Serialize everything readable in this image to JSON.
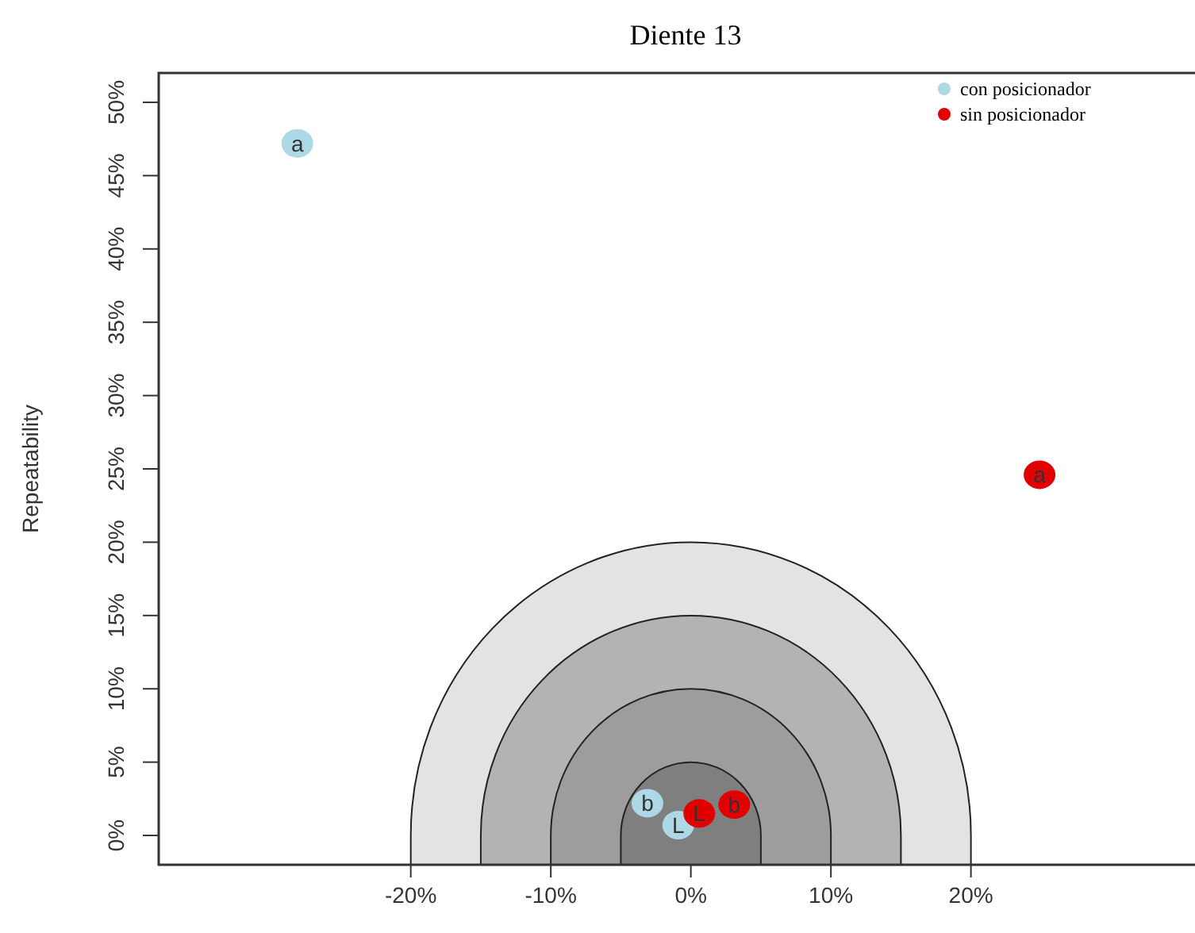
{
  "chart_data": {
    "type": "scatter",
    "title": "Diente 13",
    "ylabel": "Repeatability",
    "xlim": [
      -38,
      36
    ],
    "ylim": [
      -2,
      52
    ],
    "xticks": [
      {
        "value": -20,
        "label": "-20%"
      },
      {
        "value": -10,
        "label": "-10%"
      },
      {
        "value": 0,
        "label": "0%"
      },
      {
        "value": 10,
        "label": "10%"
      },
      {
        "value": 20,
        "label": "20%"
      }
    ],
    "yticks": [
      {
        "value": 0,
        "label": "0%"
      },
      {
        "value": 5,
        "label": "5%"
      },
      {
        "value": 10,
        "label": "10%"
      },
      {
        "value": 15,
        "label": "15%"
      },
      {
        "value": 20,
        "label": "20%"
      },
      {
        "value": 25,
        "label": "25%"
      },
      {
        "value": 30,
        "label": "30%"
      },
      {
        "value": 35,
        "label": "35%"
      },
      {
        "value": 40,
        "label": "40%"
      },
      {
        "value": 45,
        "label": "45%"
      },
      {
        "value": 50,
        "label": "50%"
      }
    ],
    "series": [
      {
        "name": "con posicionador",
        "color": "#add8e6",
        "x": [
          -28.1,
          -3.1,
          -0.9
        ],
        "values": [
          47.2,
          2.2,
          0.7
        ]
      },
      {
        "name": "sin posicionador",
        "color": "#e00000",
        "x": [
          24.9,
          3.1,
          0.6
        ],
        "values": [
          24.6,
          2.1,
          1.5
        ]
      }
    ],
    "annotations": [
      {
        "text": "a",
        "x": -28.1,
        "y": 47.2
      },
      {
        "text": "b",
        "x": -3.1,
        "y": 2.2
      },
      {
        "text": "L",
        "x": -0.9,
        "y": 0.7
      },
      {
        "text": "a",
        "x": 24.9,
        "y": 24.6
      },
      {
        "text": "b",
        "x": 3.1,
        "y": 2.1
      },
      {
        "text": "L",
        "x": 0.6,
        "y": 1.5
      }
    ],
    "marker": "circle",
    "legend": "top right",
    "grid": false
  }
}
